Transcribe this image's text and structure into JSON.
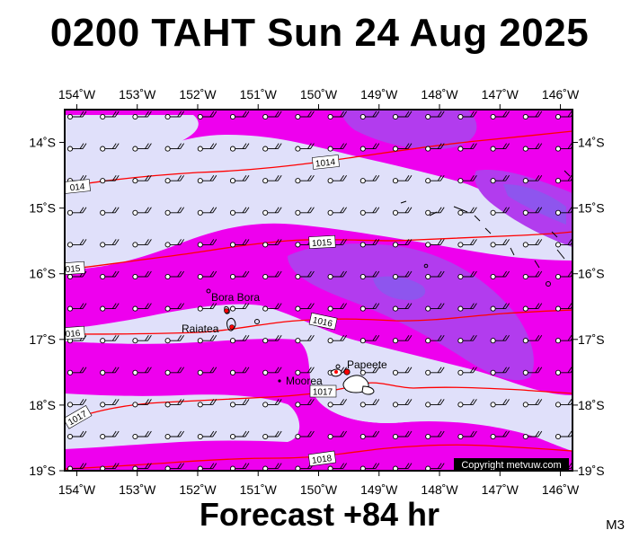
{
  "title": "0200 TAHT Sun 24 Aug 2025",
  "subtitle": "Forecast +84 hr",
  "model_code": "M3",
  "copyright": "Copyright metvuw.com",
  "map": {
    "lon_range": [
      -154.2,
      -145.8
    ],
    "lat_range": [
      -19.0,
      -13.5
    ],
    "lon_ticks": [
      "154˚W",
      "153˚W",
      "152˚W",
      "151˚W",
      "150˚W",
      "149˚W",
      "148˚W",
      "147˚W",
      "146˚W"
    ],
    "lat_ticks": [
      "14˚S",
      "15˚S",
      "16˚S",
      "17˚S",
      "18˚S",
      "19˚S"
    ],
    "places": [
      {
        "name": "Bora Bora"
      },
      {
        "name": "Raiatea"
      },
      {
        "name": "Papeete"
      },
      {
        "name": "Moorea"
      }
    ],
    "isobars": [
      {
        "value": "1014",
        "label": "1014",
        "label_left": "014"
      },
      {
        "value": "1015",
        "label": "1015",
        "label_left": "015"
      },
      {
        "value": "1016",
        "label": "1016",
        "label_left": "016"
      },
      {
        "value": "1017",
        "label": "1017",
        "label_left": "1017"
      },
      {
        "value": "1018",
        "label": "1018",
        "label_left": ""
      }
    ],
    "colors": {
      "background": "#e0e0fa",
      "shade1": "#ee00ee",
      "shade2": "#b23cee",
      "shade3": "#8e55ee",
      "isobar": "#ff0000"
    }
  }
}
